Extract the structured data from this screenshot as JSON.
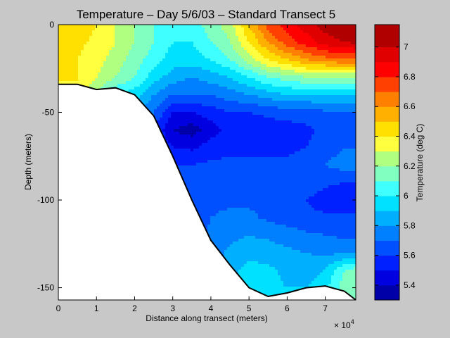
{
  "chart_data": {
    "type": "heatmap",
    "title": "Temperature – Day 5/6/03 – Standard Transect 5",
    "xlabel": "Distance along transect (meters)",
    "ylabel": "Depth (meters)",
    "x_multiplier": "× 10",
    "x_multiplier_exp": "4",
    "xlim": [
      0,
      78000
    ],
    "ylim": [
      -157,
      0
    ],
    "xticks": [
      0,
      1,
      2,
      3,
      4,
      5,
      6,
      7
    ],
    "yticks": [
      0,
      -50,
      -100,
      -150
    ],
    "colorbar": {
      "label": "Temperature (deg C)",
      "range": [
        5.3,
        7.15
      ],
      "ticks": [
        "5.4",
        "5.6",
        "5.8",
        "6",
        "6.2",
        "6.4",
        "6.6",
        "6.8",
        "7"
      ],
      "levels": [
        5.3,
        5.4,
        5.5,
        5.6,
        5.7,
        5.8,
        5.9,
        6.0,
        6.1,
        6.2,
        6.3,
        6.4,
        6.5,
        6.6,
        6.7,
        6.8,
        6.9,
        7.0,
        7.1
      ],
      "colors": [
        "#0000a8",
        "#0000e0",
        "#0020ff",
        "#0050ff",
        "#0080ff",
        "#00b0ff",
        "#00e0ff",
        "#40ffff",
        "#80ffc0",
        "#b0ff80",
        "#ffff40",
        "#ffe000",
        "#ffb000",
        "#ff8000",
        "#ff4000",
        "#ff0000",
        "#e00000",
        "#b00000"
      ]
    },
    "bottom_profile": {
      "x": [
        0,
        5000,
        10000,
        15000,
        20000,
        25000,
        30000,
        35000,
        40000,
        45000,
        50000,
        55000,
        60000,
        65000,
        70000,
        75000,
        78000
      ],
      "depth": [
        -34,
        -34,
        -37,
        -36,
        -40,
        -52,
        -75,
        -100,
        -123,
        -137,
        -150,
        -155,
        -153,
        -150,
        -149,
        -152,
        -157
      ]
    },
    "grid": {
      "x": [
        0,
        5000,
        10000,
        15000,
        20000,
        25000,
        30000,
        35000,
        40000,
        45000,
        50000,
        55000,
        60000,
        65000,
        70000,
        75000,
        78000
      ],
      "depth": [
        0,
        -10,
        -20,
        -30,
        -40,
        -50,
        -60,
        -70,
        -80,
        -90,
        -100,
        -110,
        -120,
        -130,
        -140,
        -150,
        -157
      ]
    },
    "values": [
      [
        6.5,
        6.45,
        6.4,
        6.3,
        6.2,
        6.1,
        6.05,
        6.05,
        6.15,
        6.25,
        6.5,
        6.75,
        6.85,
        6.95,
        7.05,
        7.1,
        7.12
      ],
      [
        6.45,
        6.42,
        6.38,
        6.3,
        6.2,
        6.1,
        6.0,
        6.0,
        6.1,
        6.2,
        6.4,
        6.6,
        6.75,
        6.85,
        6.95,
        7.0,
        7.02
      ],
      [
        6.4,
        6.4,
        6.35,
        6.25,
        6.15,
        6.05,
        5.95,
        5.95,
        6.0,
        6.1,
        6.25,
        6.4,
        6.5,
        6.6,
        6.65,
        6.7,
        6.7
      ],
      [
        6.4,
        6.4,
        6.3,
        6.2,
        6.1,
        5.95,
        5.85,
        5.8,
        5.85,
        5.9,
        6.0,
        6.1,
        6.15,
        6.2,
        6.2,
        6.2,
        6.2
      ],
      [
        6.4,
        6.4,
        6.2,
        6.0,
        5.95,
        5.8,
        5.7,
        5.7,
        5.7,
        5.75,
        5.8,
        5.85,
        5.9,
        5.9,
        5.9,
        5.9,
        5.9
      ],
      [
        6.4,
        6.4,
        6.0,
        5.9,
        5.85,
        5.7,
        5.5,
        5.5,
        5.55,
        5.6,
        5.6,
        5.62,
        5.65,
        5.65,
        5.68,
        5.7,
        5.7
      ],
      [
        6.4,
        6.4,
        6.0,
        5.8,
        5.75,
        5.6,
        5.4,
        5.35,
        5.45,
        5.55,
        5.55,
        5.55,
        5.55,
        5.58,
        5.62,
        5.65,
        5.65
      ],
      [
        6.4,
        6.4,
        6.0,
        5.8,
        5.7,
        5.6,
        5.5,
        5.48,
        5.55,
        5.58,
        5.58,
        5.58,
        5.58,
        5.6,
        5.65,
        5.7,
        5.7
      ],
      [
        6.4,
        6.4,
        6.0,
        5.8,
        5.7,
        5.6,
        5.6,
        5.6,
        5.62,
        5.62,
        5.62,
        5.62,
        5.62,
        5.64,
        5.7,
        5.75,
        5.75
      ],
      [
        6.4,
        6.4,
        6.0,
        5.8,
        5.7,
        5.6,
        5.6,
        5.62,
        5.65,
        5.65,
        5.65,
        5.65,
        5.66,
        5.66,
        5.62,
        5.6,
        5.6
      ],
      [
        6.4,
        6.4,
        6.0,
        5.8,
        5.7,
        5.6,
        5.6,
        5.65,
        5.68,
        5.68,
        5.68,
        5.68,
        5.66,
        5.6,
        5.55,
        5.55,
        5.55
      ],
      [
        6.4,
        6.4,
        6.0,
        5.8,
        5.7,
        5.6,
        5.6,
        5.65,
        5.7,
        5.72,
        5.72,
        5.68,
        5.65,
        5.62,
        5.62,
        5.62,
        5.62
      ],
      [
        6.4,
        6.4,
        6.0,
        5.8,
        5.7,
        5.6,
        5.6,
        5.62,
        5.72,
        5.78,
        5.8,
        5.78,
        5.75,
        5.72,
        5.7,
        5.68,
        5.68
      ],
      [
        6.4,
        6.4,
        6.0,
        5.8,
        5.7,
        5.6,
        5.6,
        5.62,
        5.75,
        5.82,
        5.85,
        5.85,
        5.82,
        5.8,
        5.78,
        5.78,
        5.78
      ],
      [
        6.4,
        6.4,
        6.0,
        5.8,
        5.7,
        5.6,
        5.6,
        5.62,
        5.75,
        5.85,
        5.95,
        5.92,
        5.88,
        5.85,
        5.9,
        6.1,
        6.15
      ],
      [
        6.4,
        6.4,
        6.0,
        5.8,
        5.7,
        5.6,
        5.6,
        5.62,
        5.75,
        5.85,
        5.95,
        5.92,
        5.9,
        5.9,
        5.98,
        6.15,
        6.2
      ],
      [
        6.4,
        6.4,
        6.0,
        5.8,
        5.7,
        5.6,
        5.6,
        5.62,
        5.75,
        5.85,
        5.95,
        5.92,
        5.9,
        5.9,
        5.98,
        6.15,
        6.2
      ]
    ]
  }
}
